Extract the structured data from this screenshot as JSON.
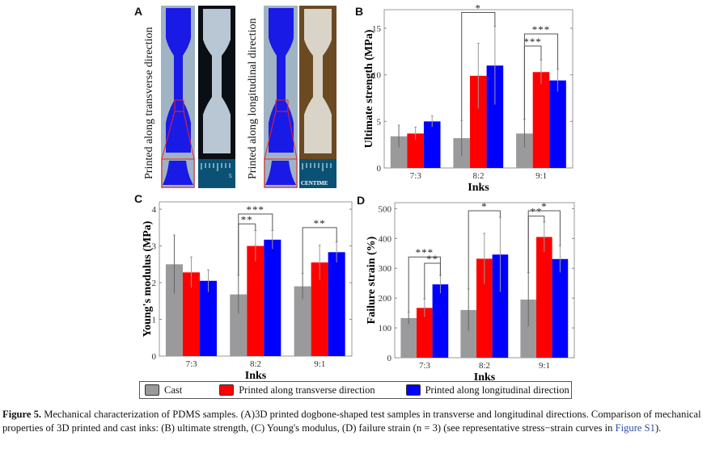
{
  "figure": {
    "panel_letters": {
      "a": "A",
      "b": "B",
      "c": "C",
      "d": "D"
    },
    "panel_a": {
      "left_label": "Printed along transverse direction",
      "right_label": "Printed along longitudinal direction",
      "ruler_left_text": "5",
      "ruler_right_text": "CENTIME"
    },
    "legend": {
      "items": [
        {
          "label": "Cast",
          "color": "#9a9a9c"
        },
        {
          "label": "Printed along transverse direction",
          "color": "#ff0000"
        },
        {
          "label": "Printed along longitudinal direction",
          "color": "#0000ff"
        }
      ]
    },
    "caption": {
      "figure_label": "Figure 5.",
      "text": " Mechanical characterization of PDMS samples. (A)3D printed dogbone-shaped test samples in transverse and longitudinal directions. Comparison of mechanical properties of 3D printed and cast inks: (B) ultimate strength, (C) Young's modulus, (D) failure strain (n = 3) (see representative stress−strain curves in ",
      "link_text": "Figure S1",
      "tail": ")."
    }
  },
  "chart_data": [
    {
      "id": "B",
      "type": "bar",
      "title": "",
      "xlabel": "Inks",
      "ylabel": "Ultimate strength (MPa)",
      "categories": [
        "7:3",
        "8:2",
        "9:1"
      ],
      "ylim": [
        0,
        17
      ],
      "yticks": [
        0,
        5,
        10,
        15
      ],
      "series": [
        {
          "name": "Cast",
          "color": "#9a9a9c",
          "values": [
            3.4,
            3.2,
            3.7
          ],
          "errors": [
            1.2,
            1.9,
            1.5
          ]
        },
        {
          "name": "Printed along transverse direction",
          "color": "#ff0000",
          "values": [
            3.7,
            9.9,
            10.3
          ],
          "errors": [
            0.7,
            3.5,
            1.3
          ]
        },
        {
          "name": "Printed along longitudinal direction",
          "color": "#0000ff",
          "values": [
            5.0,
            11.0,
            9.4
          ],
          "errors": [
            0.6,
            4.2,
            1.2
          ]
        }
      ],
      "significance": [
        {
          "category": 1,
          "from": 0,
          "to": 2,
          "label": "*",
          "level": 16.7
        },
        {
          "category": 2,
          "from": 0,
          "to": 1,
          "label": "***",
          "level": 13.1
        },
        {
          "category": 2,
          "from": 0,
          "to": 2,
          "label": "***",
          "level": 14.4
        }
      ],
      "grid": false,
      "legend": "bottom"
    },
    {
      "id": "C",
      "type": "bar",
      "title": "",
      "xlabel": "Inks",
      "ylabel": "Young's modulus (MPa)",
      "categories": [
        "7:3",
        "8:2",
        "9:1"
      ],
      "ylim": [
        0,
        4.2
      ],
      "yticks": [
        0,
        1,
        2,
        3,
        4
      ],
      "series": [
        {
          "name": "Cast",
          "color": "#9a9a9c",
          "values": [
            2.5,
            1.68,
            1.9
          ],
          "errors": [
            0.8,
            0.52,
            0.35
          ]
        },
        {
          "name": "Printed along transverse direction",
          "color": "#ff0000",
          "values": [
            2.28,
            3.0,
            2.55
          ],
          "errors": [
            0.42,
            0.42,
            0.47
          ]
        },
        {
          "name": "Printed along longitudinal direction",
          "color": "#0000ff",
          "values": [
            2.05,
            3.17,
            2.83
          ],
          "errors": [
            0.3,
            0.25,
            0.28
          ]
        }
      ],
      "significance": [
        {
          "category": 1,
          "from": 0,
          "to": 1,
          "label": "**",
          "level": 3.6
        },
        {
          "category": 1,
          "from": 0,
          "to": 2,
          "label": "***",
          "level": 3.87
        },
        {
          "category": 2,
          "from": 0,
          "to": 2,
          "label": "**",
          "level": 3.5
        }
      ],
      "grid": false,
      "legend": "bottom"
    },
    {
      "id": "D",
      "type": "bar",
      "title": "",
      "xlabel": "Inks",
      "ylabel": "Failure strain (%)",
      "categories": [
        "7:3",
        "8:2",
        "9:1"
      ],
      "ylim": [
        0,
        520
      ],
      "yticks": [
        0,
        100,
        200,
        300,
        400,
        500
      ],
      "series": [
        {
          "name": "Cast",
          "color": "#9a9a9c",
          "values": [
            133,
            160,
            195
          ],
          "errors": [
            20,
            70,
            90
          ]
        },
        {
          "name": "Printed along transverse direction",
          "color": "#ff0000",
          "values": [
            167,
            332,
            405
          ],
          "errors": [
            30,
            85,
            50
          ]
        },
        {
          "name": "Printed along longitudinal direction",
          "color": "#0000ff",
          "values": [
            246,
            346,
            331
          ],
          "errors": [
            30,
            125,
            45
          ]
        }
      ],
      "significance": [
        {
          "category": 0,
          "from": 0,
          "to": 2,
          "label": "***",
          "level": 338
        },
        {
          "category": 0,
          "from": 1,
          "to": 2,
          "label": "**",
          "level": 317
        },
        {
          "category": 1,
          "from": 0,
          "to": 2,
          "label": "*",
          "level": 493
        },
        {
          "category": 2,
          "from": 0,
          "to": 1,
          "label": "**",
          "level": 475
        },
        {
          "category": 2,
          "from": 0,
          "to": 2,
          "label": "*",
          "level": 493
        }
      ],
      "grid": false,
      "legend": "bottom"
    }
  ]
}
